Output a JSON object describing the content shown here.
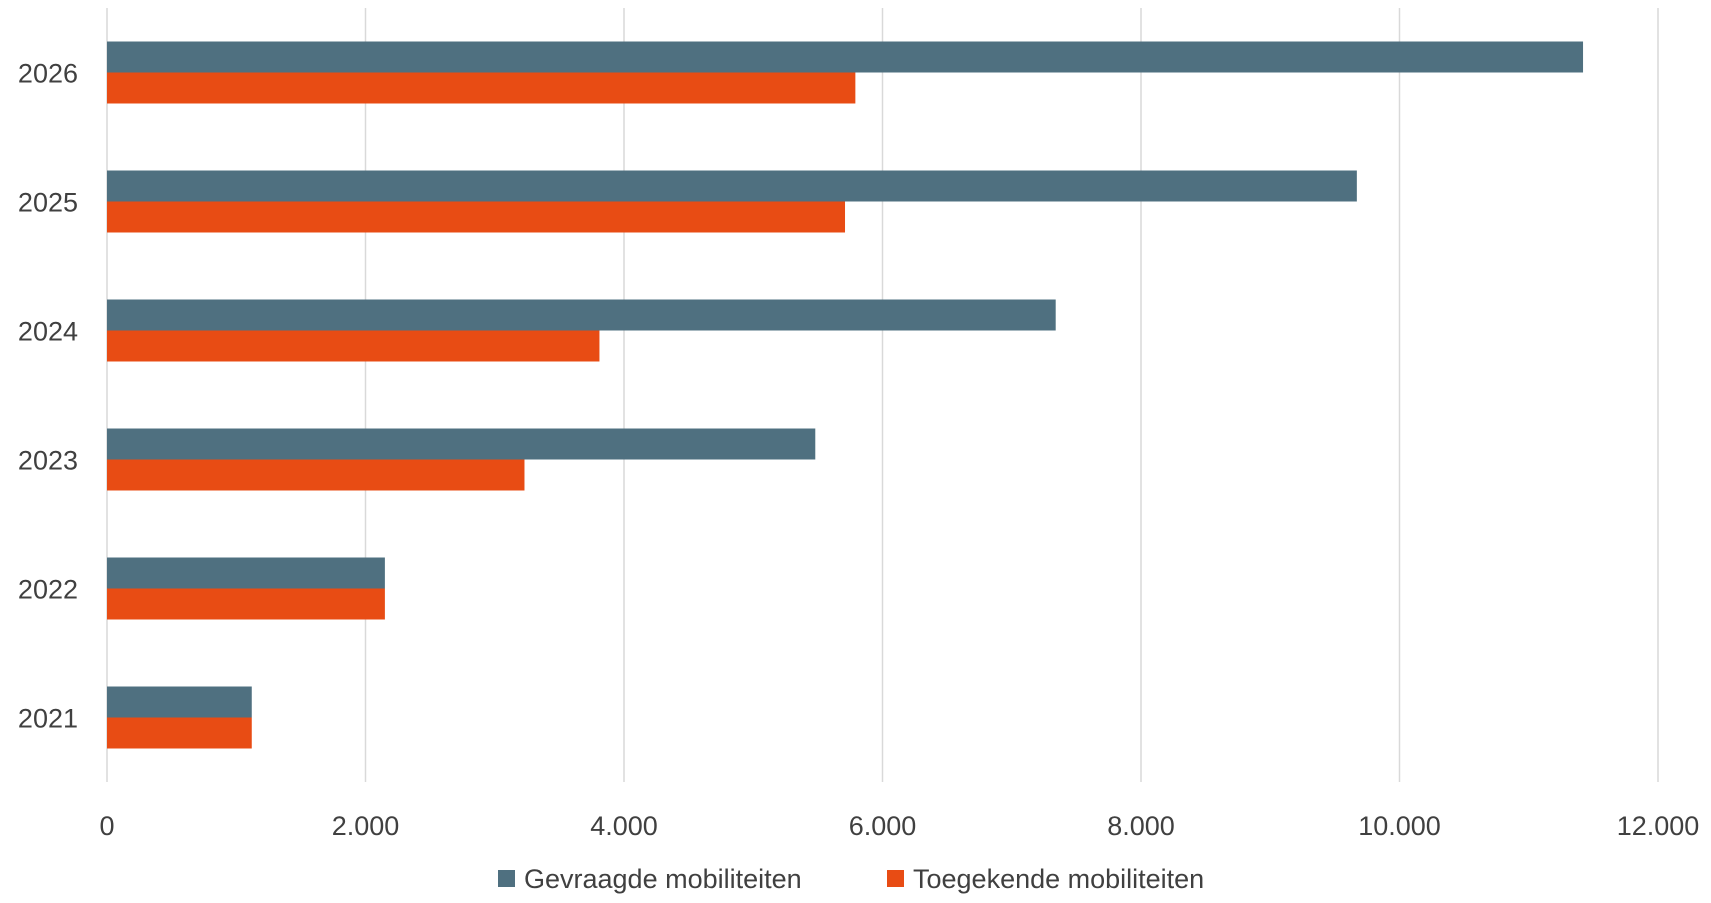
{
  "chart_data": {
    "type": "bar",
    "orientation": "horizontal",
    "categories": [
      "2021",
      "2022",
      "2023",
      "2024",
      "2025",
      "2026"
    ],
    "series": [
      {
        "name": "Gevraagde mobiliteiten",
        "color": "#4f7080",
        "values": [
          1120,
          2150,
          5480,
          7340,
          9670,
          11420
        ]
      },
      {
        "name": "Toegekende mobiliteiten",
        "color": "#e84c14",
        "values": [
          1120,
          2150,
          3230,
          3810,
          5710,
          5790
        ]
      }
    ],
    "x_ticks": [
      "0",
      "2.000",
      "4.000",
      "6.000",
      "8.000",
      "10.000",
      "12.000"
    ],
    "xlim": [
      0,
      12000
    ],
    "grid": true,
    "legend_position": "bottom",
    "title": "",
    "xlabel": "",
    "ylabel": ""
  }
}
